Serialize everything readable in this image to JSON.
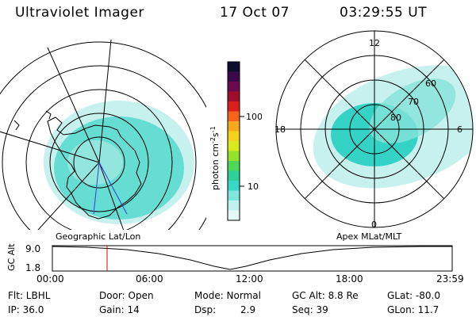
{
  "header": {
    "title": "Ultraviolet Imager",
    "date": "17 Oct 07",
    "time": "03:29:55 UT"
  },
  "geo_map": {
    "label": "Geographic Lat/Lon"
  },
  "apex_map": {
    "label": "Apex MLat/MLT",
    "mlt_labels": [
      "12",
      "18",
      "6",
      "0"
    ],
    "lat_labels": [
      "60",
      "70",
      "80"
    ]
  },
  "colorbar": {
    "unit_label": "photon cm",
    "unit_sup1": "-2",
    "unit_s": "s",
    "unit_sup2": "-1",
    "ticks": [
      "100",
      "10"
    ],
    "colors": [
      "#0d0d2e",
      "#3a0a4a",
      "#6b0b4f",
      "#a00d2a",
      "#d9201e",
      "#f5641a",
      "#f7a81d",
      "#f2d21c",
      "#d7ea1f",
      "#95e22a",
      "#4fd75a",
      "#2fcf9a",
      "#38d7c6",
      "#7ee6dc",
      "#bff2ee",
      "#e4f8f6"
    ]
  },
  "alt_plot": {
    "axis_label": "GC Alt",
    "y_ticks": [
      "9.0",
      "1.8"
    ]
  },
  "time_axis": [
    "00:00",
    "06:00",
    "12:00",
    "18:00",
    "23:59"
  ],
  "status": {
    "flt": "Flt: LBHL",
    "ip": "IP: 36.0",
    "door": "Door: Open",
    "gain": "Gain: 14",
    "mode": "Mode: Normal",
    "dsp_label": "Dsp:",
    "dsp_value": "2.9",
    "gcalt": "GC Alt: 8.8 Re",
    "seq": "Seq: 39",
    "glat": "GLat: -80.0",
    "glon": "GLon:  11.7"
  },
  "colors": {
    "aurora": "#35d3c5",
    "aurora_light": "#c6f1ee",
    "marker": "#e00000"
  }
}
